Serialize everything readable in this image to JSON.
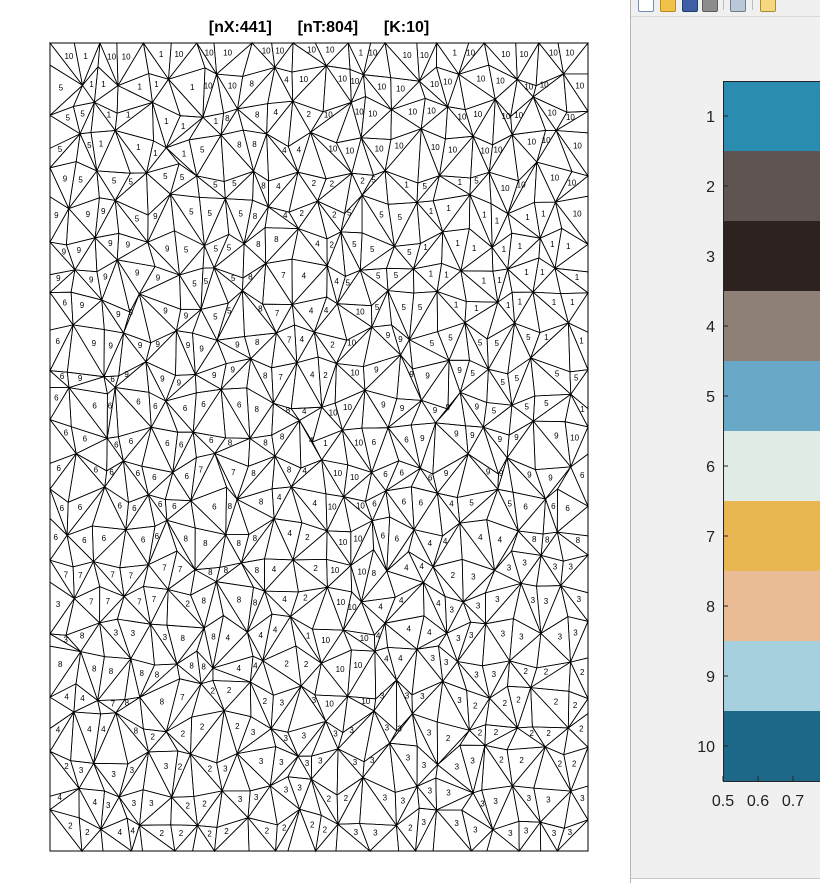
{
  "mesh_figure": {
    "title": "[nX:441]    [nT:804]    [K:10]",
    "cluster_labels": [
      [
        "10",
        "1",
        "10",
        "10",
        "1",
        "10",
        "10",
        "10",
        "10",
        "10",
        "10",
        "10",
        "1",
        "10",
        "10",
        "10",
        "1",
        "10",
        "10",
        "10",
        "10",
        "10"
      ],
      [
        "5",
        "1",
        "1",
        "1",
        "1",
        "1",
        "10",
        "10",
        "8",
        "4",
        "10",
        "10",
        "10",
        "10",
        "10",
        "10",
        "10",
        "10",
        "10",
        "10",
        "10",
        "10"
      ],
      [
        "5",
        "5",
        "1",
        "1",
        "1",
        "1",
        "1",
        "8",
        "8",
        "4",
        "2",
        "10",
        "10",
        "10",
        "10",
        "10",
        "10",
        "10",
        "10",
        "10",
        "10",
        "10"
      ],
      [
        "5",
        "5",
        "1",
        "1",
        "1",
        "1",
        "5",
        "8",
        "8",
        "4",
        "4",
        "10",
        "10",
        "10",
        "10",
        "10",
        "10",
        "10",
        "10",
        "10",
        "10",
        "10"
      ],
      [
        "9",
        "5",
        "5",
        "5",
        "5",
        "5",
        "5",
        "5",
        "8",
        "4",
        "2",
        "2",
        "2",
        "5",
        "1",
        "5",
        "1",
        "5",
        "10",
        "10",
        "10",
        "10"
      ],
      [
        "9",
        "9",
        "9",
        "5",
        "9",
        "5",
        "5",
        "5",
        "8",
        "4",
        "2",
        "2",
        "5",
        "5",
        "5",
        "1",
        "1",
        "1",
        "1",
        "1",
        "1",
        "10"
      ],
      [
        "9",
        "9",
        "9",
        "9",
        "9",
        "5",
        "5",
        "5",
        "8",
        "8",
        "4",
        "2",
        "5",
        "5",
        "5",
        "1",
        "1",
        "1",
        "1",
        "1",
        "1",
        "1"
      ],
      [
        "9",
        "9",
        "9",
        "9",
        "9",
        "5",
        "5",
        "5",
        "8",
        "7",
        "4",
        "4",
        "5",
        "5",
        "5",
        "1",
        "1",
        "1",
        "1",
        "1",
        "1",
        "1"
      ],
      [
        "6",
        "9",
        "9",
        "9",
        "9",
        "9",
        "5",
        "5",
        "8",
        "7",
        "4",
        "4",
        "10",
        "5",
        "5",
        "5",
        "1",
        "1",
        "1",
        "1",
        "1",
        "1"
      ],
      [
        "6",
        "9",
        "9",
        "9",
        "9",
        "9",
        "9",
        "9",
        "8",
        "7",
        "4",
        "2",
        "10",
        "9",
        "9",
        "5",
        "5",
        "5",
        "5",
        "5",
        "1",
        "1"
      ],
      [
        "6",
        "9",
        "6",
        "9",
        "9",
        "9",
        "9",
        "9",
        "8",
        "7",
        "4",
        "2",
        "10",
        "9",
        "9",
        "9",
        "9",
        "5",
        "5",
        "5",
        "5",
        "5"
      ],
      [
        "6",
        "6",
        "6",
        "6",
        "6",
        "6",
        "6",
        "6",
        "8",
        "8",
        "4",
        "10",
        "10",
        "9",
        "9",
        "9",
        "9",
        "9",
        "5",
        "5",
        "5",
        "1"
      ],
      [
        "6",
        "6",
        "6",
        "6",
        "6",
        "6",
        "6",
        "8",
        "8",
        "8",
        "4",
        "1",
        "10",
        "6",
        "6",
        "9",
        "9",
        "9",
        "9",
        "9",
        "9",
        "10"
      ],
      [
        "6",
        "6",
        "6",
        "6",
        "6",
        "6",
        "7",
        "7",
        "8",
        "8",
        "4",
        "10",
        "10",
        "6",
        "6",
        "6",
        "9",
        "9",
        "9",
        "9",
        "9",
        "6"
      ],
      [
        "6",
        "6",
        "6",
        "6",
        "6",
        "6",
        "6",
        "8",
        "8",
        "4",
        "4",
        "10",
        "10",
        "6",
        "6",
        "6",
        "4",
        "5",
        "5",
        "6",
        "6",
        "6"
      ],
      [
        "6",
        "6",
        "6",
        "6",
        "6",
        "8",
        "8",
        "8",
        "8",
        "4",
        "2",
        "10",
        "10",
        "6",
        "6",
        "4",
        "4",
        "4",
        "4",
        "8",
        "8",
        "8"
      ],
      [
        "7",
        "7",
        "7",
        "7",
        "7",
        "7",
        "8",
        "8",
        "8",
        "4",
        "2",
        "10",
        "10",
        "8",
        "4",
        "4",
        "2",
        "3",
        "3",
        "3",
        "3",
        "3"
      ],
      [
        "3",
        "7",
        "7",
        "7",
        "7",
        "2",
        "8",
        "8",
        "8",
        "4",
        "2",
        "10",
        "10",
        "4",
        "4",
        "4",
        "3",
        "3",
        "3",
        "3",
        "3",
        "3"
      ],
      [
        "3",
        "8",
        "3",
        "3",
        "3",
        "8",
        "8",
        "4",
        "4",
        "4",
        "1",
        "10",
        "10",
        "4",
        "4",
        "4",
        "3",
        "3",
        "3",
        "3",
        "3",
        "3"
      ],
      [
        "8",
        "8",
        "8",
        "8",
        "8",
        "8",
        "8",
        "4",
        "4",
        "2",
        "2",
        "10",
        "10",
        "4",
        "4",
        "3",
        "3",
        "3",
        "3",
        "2",
        "2",
        "2"
      ],
      [
        "4",
        "4",
        "7",
        "8",
        "8",
        "7",
        "2",
        "2",
        "2",
        "3",
        "3",
        "10",
        "10",
        "3",
        "3",
        "3",
        "3",
        "2",
        "2",
        "2",
        "2",
        "2"
      ],
      [
        "4",
        "4",
        "4",
        "8",
        "2",
        "2",
        "2",
        "2",
        "3",
        "3",
        "3",
        "3",
        "3",
        "3",
        "3",
        "3",
        "2",
        "2",
        "2",
        "2",
        "2",
        "2"
      ],
      [
        "2",
        "3",
        "3",
        "3",
        "3",
        "2",
        "2",
        "3",
        "3",
        "3",
        "3",
        "3",
        "3",
        "3",
        "3",
        "3",
        "3",
        "3",
        "2",
        "2",
        "2",
        "2"
      ],
      [
        "4",
        "4",
        "3",
        "3",
        "3",
        "2",
        "2",
        "3",
        "3",
        "3",
        "3",
        "2",
        "2",
        "3",
        "3",
        "3",
        "3",
        "3",
        "3",
        "3",
        "3",
        "3"
      ],
      [
        "2",
        "2",
        "4",
        "4",
        "2",
        "2",
        "2",
        "2",
        "2",
        "2",
        "2",
        "2",
        "3",
        "3",
        "2",
        "3",
        "3",
        "3",
        "3",
        "3",
        "3",
        "3"
      ]
    ]
  },
  "second_window": {
    "toolbar_icons": [
      "new-figure-icon",
      "open-folder-icon",
      "save-icon",
      "print-preview-icon",
      "print-icon",
      "copy-icon"
    ],
    "chart_data": {
      "type": "bar",
      "orientation": "horizontal",
      "categories": [
        "1",
        "2",
        "3",
        "4",
        "5",
        "6",
        "7",
        "8",
        "9",
        "10"
      ],
      "category_colors": [
        "#2a8cb1",
        "#5e5552",
        "#2e2220",
        "#8e7f77",
        "#6aa8c8",
        "#e1ebe6",
        "#e9b752",
        "#e9bc96",
        "#a6d0dd",
        "#1d6788"
      ],
      "x_ticks": [
        "0.5",
        "0.6",
        "0.7"
      ],
      "x_visible_range": [
        0.5,
        0.78
      ],
      "legend": "none",
      "grid": false
    }
  }
}
